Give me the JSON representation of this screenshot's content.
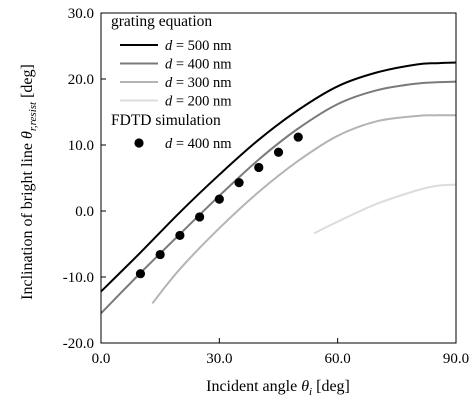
{
  "chart_data": {
    "type": "line",
    "xlabel": "Incident angle θ_i [deg]",
    "ylabel": "Inclination of bright line θ_r,resist [deg]",
    "xlim": [
      0,
      90
    ],
    "ylim": [
      -20,
      30
    ],
    "x_ticks": [
      "0.0",
      "30.0",
      "60.0",
      "90.0"
    ],
    "y_ticks": [
      "-20.0",
      "-10.0",
      "0.0",
      "10.0",
      "20.0",
      "30.0"
    ],
    "grid": false,
    "legend": {
      "placement": "top-left",
      "group1_title": "grating equation",
      "group2_title": "FDTD simulation"
    },
    "series": [
      {
        "name": "d = 500 nm",
        "d_value": "500 nm",
        "color": "#000000",
        "kind": "line",
        "x": [
          0,
          10,
          20,
          30,
          40,
          50,
          60,
          70,
          80,
          85,
          90
        ],
        "y": [
          -12.2,
          -6.3,
          -0.2,
          5.5,
          10.8,
          15.3,
          18.9,
          21.0,
          22.2,
          22.4,
          22.5
        ]
      },
      {
        "name": "d = 400 nm",
        "d_value": "400 nm",
        "color": "#7a7a7a",
        "kind": "line",
        "x": [
          0,
          10,
          20,
          30,
          40,
          50,
          60,
          70,
          80,
          85,
          90
        ],
        "y": [
          -15.5,
          -9.4,
          -3.5,
          2.3,
          7.8,
          12.5,
          16.2,
          18.3,
          19.3,
          19.5,
          19.6
        ]
      },
      {
        "name": "d = 300 nm",
        "d_value": "300 nm",
        "color": "#b4b4b4",
        "kind": "line",
        "x": [
          13,
          20,
          30,
          40,
          50,
          60,
          70,
          80,
          85,
          90
        ],
        "y": [
          -14.0,
          -8.8,
          -2.6,
          2.9,
          7.6,
          11.4,
          13.6,
          14.4,
          14.5,
          14.5
        ]
      },
      {
        "name": "d = 200 nm",
        "d_value": "200 nm",
        "color": "#dcdcdc",
        "kind": "line",
        "x": [
          54,
          60,
          70,
          80,
          85,
          90
        ],
        "y": [
          -3.4,
          -1.6,
          1.1,
          3.1,
          3.8,
          4.0
        ]
      },
      {
        "name": "d = 400 nm",
        "d_value": "400 nm",
        "color": "#000000",
        "kind": "scatter",
        "x": [
          10,
          15,
          20,
          25,
          30,
          35,
          40,
          45,
          50
        ],
        "y": [
          -9.5,
          -6.6,
          -3.7,
          -0.9,
          1.8,
          4.3,
          6.6,
          8.9,
          11.2
        ]
      }
    ]
  }
}
